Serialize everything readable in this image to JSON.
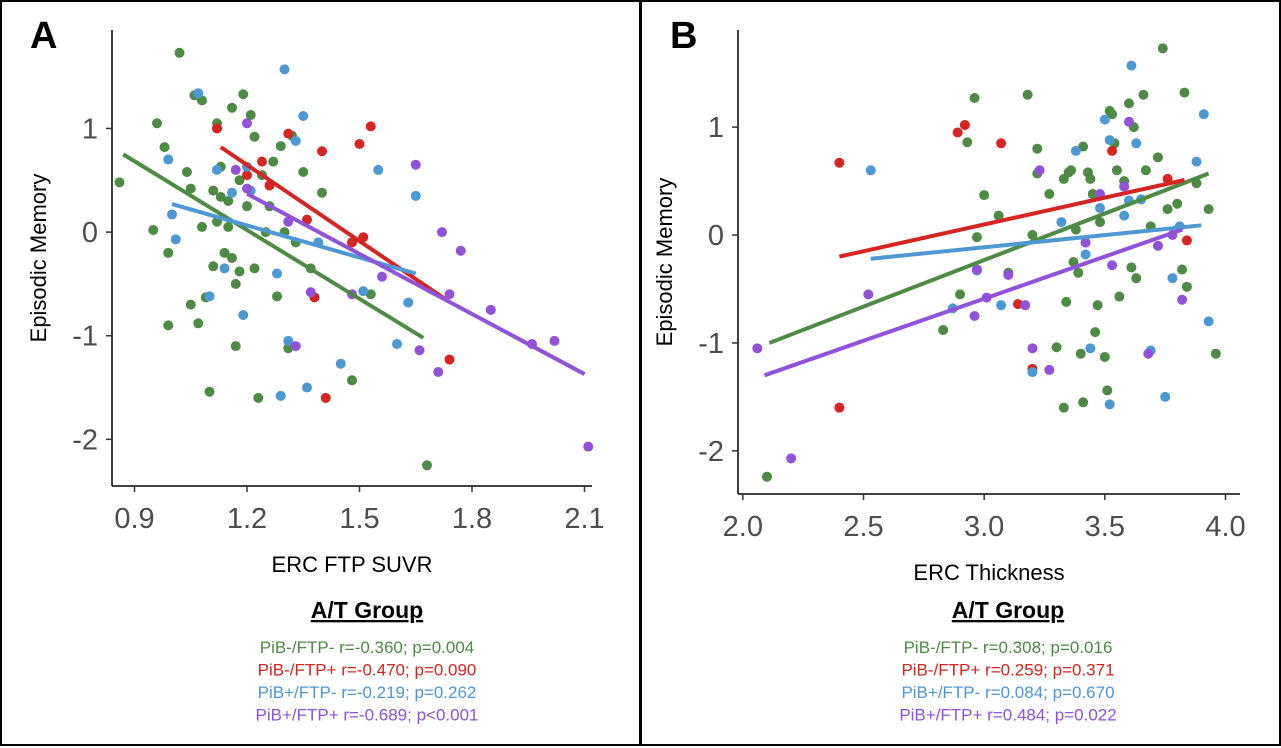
{
  "chart_data": [
    {
      "type": "scatter",
      "panel_label": "A",
      "xlabel": "ERC FTP SUVR",
      "ylabel": "Episodic Memory",
      "xlim": [
        0.84,
        2.12
      ],
      "ylim": [
        -2.45,
        1.95
      ],
      "xticks": [
        0.9,
        1.2,
        1.5,
        1.8,
        2.1
      ],
      "xtick_labels": [
        "0.9",
        "1.2",
        "1.5",
        "1.8",
        "2.1"
      ],
      "yticks": [
        -2,
        -1,
        0,
        1
      ],
      "ytick_labels": [
        "-2",
        "-1",
        "0",
        "1"
      ],
      "grid": false,
      "legend_title": "A/T Group",
      "series": [
        {
          "name": "PiB-/FTP-",
          "color": "#4e8a45",
          "stat": "r=-0.360; p=0.004",
          "fit": [
            [
              0.87,
              0.75
            ],
            [
              1.67,
              -1.02
            ]
          ],
          "points": [
            [
              0.86,
              0.48
            ],
            [
              0.95,
              0.02
            ],
            [
              0.96,
              1.05
            ],
            [
              0.98,
              0.82
            ],
            [
              0.99,
              -0.2
            ],
            [
              0.99,
              -0.9
            ],
            [
              1.02,
              1.73
            ],
            [
              1.04,
              0.58
            ],
            [
              1.05,
              0.42
            ],
            [
              1.05,
              -0.7
            ],
            [
              1.06,
              1.32
            ],
            [
              1.07,
              -0.88
            ],
            [
              1.08,
              0.05
            ],
            [
              1.08,
              1.27
            ],
            [
              1.09,
              -0.63
            ],
            [
              1.1,
              -1.54
            ],
            [
              1.11,
              0.4
            ],
            [
              1.11,
              -0.33
            ],
            [
              1.12,
              0.1
            ],
            [
              1.12,
              1.05
            ],
            [
              1.13,
              0.34
            ],
            [
              1.13,
              0.63
            ],
            [
              1.14,
              -0.2
            ],
            [
              1.15,
              0.3
            ],
            [
              1.15,
              0.05
            ],
            [
              1.16,
              1.2
            ],
            [
              1.16,
              -0.25
            ],
            [
              1.17,
              -1.1
            ],
            [
              1.17,
              -0.5
            ],
            [
              1.18,
              -0.38
            ],
            [
              1.18,
              0.5
            ],
            [
              1.19,
              1.33
            ],
            [
              1.2,
              0.25
            ],
            [
              1.21,
              1.13
            ],
            [
              1.22,
              -0.35
            ],
            [
              1.22,
              0.92
            ],
            [
              1.23,
              -1.6
            ],
            [
              1.24,
              0.55
            ],
            [
              1.25,
              0.0
            ],
            [
              1.26,
              0.25
            ],
            [
              1.27,
              0.68
            ],
            [
              1.28,
              -0.62
            ],
            [
              1.29,
              0.83
            ],
            [
              1.3,
              0.0
            ],
            [
              1.31,
              -1.12
            ],
            [
              1.32,
              0.93
            ],
            [
              1.33,
              -0.1
            ],
            [
              1.35,
              0.58
            ],
            [
              1.37,
              -0.35
            ],
            [
              1.4,
              0.38
            ],
            [
              1.48,
              -1.43
            ],
            [
              1.53,
              -0.6
            ],
            [
              1.68,
              -2.25
            ]
          ]
        },
        {
          "name": "PiB-/FTP+",
          "color": "#d62424",
          "stat": "r=-0.470; p=0.090",
          "fit": [
            [
              1.13,
              0.82
            ],
            [
              1.73,
              -0.65
            ]
          ],
          "points": [
            [
              1.12,
              1.0
            ],
            [
              1.2,
              0.55
            ],
            [
              1.24,
              0.68
            ],
            [
              1.26,
              0.45
            ],
            [
              1.31,
              0.95
            ],
            [
              1.36,
              0.12
            ],
            [
              1.38,
              -0.63
            ],
            [
              1.4,
              0.78
            ],
            [
              1.41,
              -1.6
            ],
            [
              1.48,
              -0.1
            ],
            [
              1.5,
              0.85
            ],
            [
              1.51,
              -0.05
            ],
            [
              1.53,
              1.02
            ],
            [
              1.74,
              -1.23
            ]
          ]
        },
        {
          "name": "PiB+/FTP-",
          "color": "#4d97d3",
          "stat": "r=-0.219; p=0.262",
          "fit": [
            [
              1.0,
              0.27
            ],
            [
              1.65,
              -0.4
            ]
          ],
          "points": [
            [
              0.99,
              0.7
            ],
            [
              1.0,
              0.17
            ],
            [
              1.01,
              -0.07
            ],
            [
              1.07,
              1.34
            ],
            [
              1.1,
              -0.62
            ],
            [
              1.12,
              0.6
            ],
            [
              1.14,
              -0.35
            ],
            [
              1.16,
              0.38
            ],
            [
              1.19,
              -0.8
            ],
            [
              1.2,
              0.63
            ],
            [
              1.21,
              0.4
            ],
            [
              1.28,
              -0.4
            ],
            [
              1.29,
              -1.58
            ],
            [
              1.3,
              1.57
            ],
            [
              1.31,
              -1.05
            ],
            [
              1.33,
              0.88
            ],
            [
              1.35,
              1.12
            ],
            [
              1.36,
              -1.5
            ],
            [
              1.39,
              -0.1
            ],
            [
              1.45,
              -1.27
            ],
            [
              1.51,
              -0.57
            ],
            [
              1.55,
              0.6
            ],
            [
              1.6,
              -1.08
            ],
            [
              1.63,
              -0.68
            ],
            [
              1.65,
              0.35
            ]
          ]
        },
        {
          "name": "PiB+/FTP+",
          "color": "#8f52d9",
          "stat": "r=-0.689; p<0.001",
          "fit": [
            [
              1.2,
              0.37
            ],
            [
              2.1,
              -1.37
            ]
          ],
          "points": [
            [
              1.17,
              0.6
            ],
            [
              1.2,
              0.42
            ],
            [
              1.2,
              1.05
            ],
            [
              1.31,
              0.1
            ],
            [
              1.33,
              -1.1
            ],
            [
              1.37,
              -0.58
            ],
            [
              1.48,
              -0.6
            ],
            [
              1.56,
              -0.43
            ],
            [
              1.65,
              0.65
            ],
            [
              1.66,
              -1.14
            ],
            [
              1.71,
              -1.35
            ],
            [
              1.72,
              0.0
            ],
            [
              1.74,
              -0.6
            ],
            [
              1.77,
              -0.18
            ],
            [
              1.85,
              -0.75
            ],
            [
              1.96,
              -1.08
            ],
            [
              2.02,
              -1.05
            ],
            [
              2.11,
              -2.07
            ]
          ]
        }
      ]
    },
    {
      "type": "scatter",
      "panel_label": "B",
      "xlabel": "ERC Thickness",
      "ylabel": "Episodic Memory",
      "xlim": [
        1.98,
        4.06
      ],
      "ylim": [
        -2.4,
        1.9
      ],
      "xticks": [
        2.0,
        2.5,
        3.0,
        3.5,
        4.0
      ],
      "xtick_labels": [
        "2.0",
        "2.5",
        "3.0",
        "3.5",
        "4.0"
      ],
      "yticks": [
        -2,
        -1,
        0,
        1
      ],
      "ytick_labels": [
        "-2",
        "-1",
        "0",
        "1"
      ],
      "grid": false,
      "legend_title": "A/T Group",
      "series": [
        {
          "name": "PiB-/FTP-",
          "color": "#4e8a45",
          "stat": "r=0.308; p=0.016",
          "fit": [
            [
              2.11,
              -1.0
            ],
            [
              3.93,
              0.57
            ]
          ],
          "points": [
            [
              2.1,
              -2.24
            ],
            [
              2.83,
              -0.88
            ],
            [
              2.9,
              -0.55
            ],
            [
              2.93,
              0.86
            ],
            [
              2.96,
              1.27
            ],
            [
              2.97,
              -0.02
            ],
            [
              3.0,
              0.37
            ],
            [
              3.06,
              0.18
            ],
            [
              3.1,
              -0.35
            ],
            [
              3.18,
              1.3
            ],
            [
              3.2,
              0.0
            ],
            [
              3.22,
              0.57
            ],
            [
              3.22,
              0.8
            ],
            [
              3.27,
              0.38
            ],
            [
              3.3,
              -1.04
            ],
            [
              3.33,
              0.52
            ],
            [
              3.33,
              -1.6
            ],
            [
              3.34,
              -0.62
            ],
            [
              3.35,
              0.58
            ],
            [
              3.36,
              0.6
            ],
            [
              3.37,
              -0.25
            ],
            [
              3.38,
              0.05
            ],
            [
              3.39,
              -0.35
            ],
            [
              3.4,
              -1.1
            ],
            [
              3.41,
              0.82
            ],
            [
              3.41,
              -1.55
            ],
            [
              3.43,
              0.58
            ],
            [
              3.44,
              0.52
            ],
            [
              3.45,
              0.38
            ],
            [
              3.46,
              -0.9
            ],
            [
              3.47,
              -0.65
            ],
            [
              3.48,
              0.12
            ],
            [
              3.5,
              -1.13
            ],
            [
              3.51,
              -1.44
            ],
            [
              3.52,
              1.15
            ],
            [
              3.53,
              1.12
            ],
            [
              3.54,
              0.85
            ],
            [
              3.55,
              0.6
            ],
            [
              3.56,
              -0.57
            ],
            [
              3.58,
              0.5
            ],
            [
              3.6,
              1.22
            ],
            [
              3.61,
              -0.3
            ],
            [
              3.62,
              1.0
            ],
            [
              3.63,
              -0.4
            ],
            [
              3.66,
              1.3
            ],
            [
              3.67,
              0.6
            ],
            [
              3.69,
              0.08
            ],
            [
              3.72,
              0.72
            ],
            [
              3.74,
              1.73
            ],
            [
              3.76,
              0.24
            ],
            [
              3.8,
              0.29
            ],
            [
              3.82,
              -0.32
            ],
            [
              3.83,
              1.32
            ],
            [
              3.84,
              -0.48
            ],
            [
              3.88,
              0.48
            ],
            [
              3.93,
              0.24
            ],
            [
              3.96,
              -1.1
            ]
          ]
        },
        {
          "name": "PiB-/FTP+",
          "color": "#d62424",
          "stat": "r=0.259; p=0.371",
          "fit": [
            [
              2.4,
              -0.2
            ],
            [
              3.83,
              0.51
            ]
          ],
          "points": [
            [
              2.4,
              0.67
            ],
            [
              2.4,
              -1.6
            ],
            [
              2.89,
              0.95
            ],
            [
              2.92,
              1.02
            ],
            [
              3.07,
              0.85
            ],
            [
              3.14,
              -0.64
            ],
            [
              3.2,
              -1.24
            ],
            [
              3.53,
              0.78
            ],
            [
              3.76,
              0.52
            ],
            [
              3.84,
              -0.05
            ]
          ]
        },
        {
          "name": "PiB+/FTP-",
          "color": "#4d97d3",
          "stat": "r=0.084; p=0.670",
          "fit": [
            [
              2.53,
              -0.22
            ],
            [
              3.9,
              0.09
            ]
          ],
          "points": [
            [
              2.53,
              0.6
            ],
            [
              2.87,
              -0.68
            ],
            [
              2.97,
              -0.33
            ],
            [
              3.07,
              -0.65
            ],
            [
              3.2,
              -1.27
            ],
            [
              3.32,
              0.12
            ],
            [
              3.38,
              0.78
            ],
            [
              3.42,
              -0.18
            ],
            [
              3.44,
              -1.05
            ],
            [
              3.48,
              0.25
            ],
            [
              3.5,
              1.07
            ],
            [
              3.52,
              0.88
            ],
            [
              3.52,
              -1.57
            ],
            [
              3.58,
              0.18
            ],
            [
              3.6,
              0.32
            ],
            [
              3.61,
              1.57
            ],
            [
              3.63,
              0.85
            ],
            [
              3.65,
              0.33
            ],
            [
              3.69,
              -1.07
            ],
            [
              3.75,
              -1.5
            ],
            [
              3.78,
              -0.4
            ],
            [
              3.81,
              0.08
            ],
            [
              3.88,
              0.68
            ],
            [
              3.91,
              1.12
            ],
            [
              3.93,
              -0.8
            ]
          ]
        },
        {
          "name": "PiB+/FTP+",
          "color": "#8f52d9",
          "stat": "r=0.484; p=0.022",
          "fit": [
            [
              2.09,
              -1.3
            ],
            [
              3.82,
              0.05
            ]
          ],
          "points": [
            [
              2.06,
              -1.05
            ],
            [
              2.2,
              -2.07
            ],
            [
              2.52,
              -0.55
            ],
            [
              2.96,
              -0.75
            ],
            [
              2.97,
              -0.32
            ],
            [
              3.01,
              -0.58
            ],
            [
              3.1,
              -0.37
            ],
            [
              3.17,
              -0.65
            ],
            [
              3.2,
              -1.05
            ],
            [
              3.23,
              0.6
            ],
            [
              3.27,
              -1.25
            ],
            [
              3.42,
              -0.07
            ],
            [
              3.48,
              0.38
            ],
            [
              3.53,
              -0.28
            ],
            [
              3.58,
              0.45
            ],
            [
              3.6,
              1.05
            ],
            [
              3.68,
              -1.1
            ],
            [
              3.72,
              -0.1
            ],
            [
              3.78,
              0.0
            ],
            [
              3.82,
              -0.6
            ]
          ]
        }
      ]
    }
  ]
}
